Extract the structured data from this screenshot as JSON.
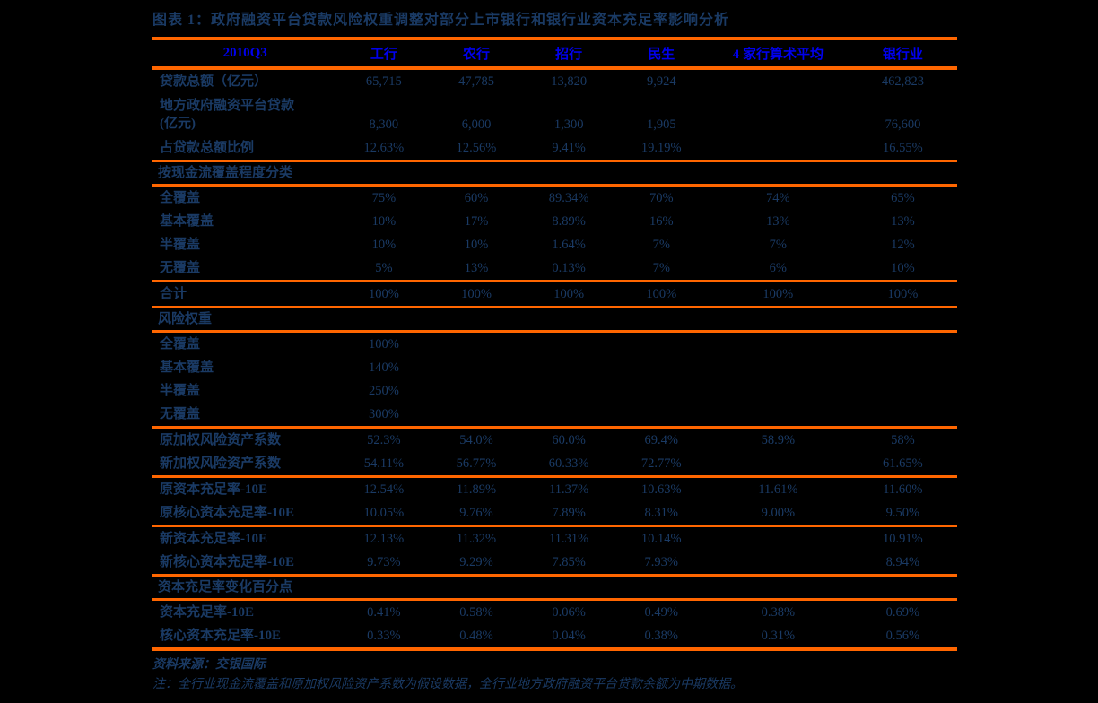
{
  "title": "图表 1：政府融资平台贷款风险权重调整对部分上市银行和银行业资本充足率影响分析",
  "colors": {
    "background": "#000000",
    "rule_orange": "#FF6600",
    "header_blue": "#0000EE",
    "body_navy": "#1A3A64"
  },
  "table": {
    "header": [
      "2010Q3",
      "工行",
      "农行",
      "招行",
      "民生",
      "4 家行算术平均",
      "银行业"
    ],
    "rows": [
      {
        "type": "data",
        "label": "贷款总额（亿元）",
        "values": [
          "65,715",
          "47,785",
          "13,820",
          "9,924",
          "",
          "462,823"
        ]
      },
      {
        "type": "data2",
        "label_line1": "地方政府融资平台贷款",
        "label_line2": "(亿元)",
        "values": [
          "8,300",
          "6,000",
          "1,300",
          "1,905",
          "",
          "76,600"
        ]
      },
      {
        "type": "data",
        "label": "占贷款总额比例",
        "values": [
          "12.63%",
          "12.56%",
          "9.41%",
          "19.19%",
          "",
          "16.55%"
        ]
      },
      {
        "type": "rule"
      },
      {
        "type": "section",
        "label": "按现金流覆盖程度分类"
      },
      {
        "type": "rule"
      },
      {
        "type": "data",
        "label": "全覆盖",
        "values": [
          "75%",
          "60%",
          "89.34%",
          "70%",
          "74%",
          "65%"
        ]
      },
      {
        "type": "data",
        "label": "基本覆盖",
        "values": [
          "10%",
          "17%",
          "8.89%",
          "16%",
          "13%",
          "13%"
        ]
      },
      {
        "type": "data",
        "label": "半覆盖",
        "values": [
          "10%",
          "10%",
          "1.64%",
          "7%",
          "7%",
          "12%"
        ]
      },
      {
        "type": "data",
        "label": "无覆盖",
        "values": [
          "5%",
          "13%",
          "0.13%",
          "7%",
          "6%",
          "10%"
        ]
      },
      {
        "type": "rule"
      },
      {
        "type": "data",
        "label": "合计",
        "values": [
          "100%",
          "100%",
          "100%",
          "100%",
          "100%",
          "100%"
        ]
      },
      {
        "type": "rule"
      },
      {
        "type": "section",
        "label": "风险权重"
      },
      {
        "type": "rule"
      },
      {
        "type": "data",
        "label": "全覆盖",
        "values": [
          "100%",
          "",
          "",
          "",
          "",
          ""
        ]
      },
      {
        "type": "data",
        "label": "基本覆盖",
        "values": [
          "140%",
          "",
          "",
          "",
          "",
          ""
        ]
      },
      {
        "type": "data",
        "label": "半覆盖",
        "values": [
          "250%",
          "",
          "",
          "",
          "",
          ""
        ]
      },
      {
        "type": "data",
        "label": "无覆盖",
        "values": [
          "300%",
          "",
          "",
          "",
          "",
          ""
        ]
      },
      {
        "type": "rule"
      },
      {
        "type": "data",
        "label": "原加权风险资产系数",
        "values": [
          "52.3%",
          "54.0%",
          "60.0%",
          "69.4%",
          "58.9%",
          "58%"
        ]
      },
      {
        "type": "data",
        "label": "新加权风险资产系数",
        "values": [
          "54.11%",
          "56.77%",
          "60.33%",
          "72.77%",
          "",
          "61.65%"
        ]
      },
      {
        "type": "rule"
      },
      {
        "type": "data",
        "label": "原资本充足率-10E",
        "values": [
          "12.54%",
          "11.89%",
          "11.37%",
          "10.63%",
          "11.61%",
          "11.60%"
        ]
      },
      {
        "type": "data",
        "label": "原核心资本充足率-10E",
        "values": [
          "10.05%",
          "9.76%",
          "7.89%",
          "8.31%",
          "9.00%",
          "9.50%"
        ]
      },
      {
        "type": "rule"
      },
      {
        "type": "data",
        "label": "新资本充足率-10E",
        "values": [
          "12.13%",
          "11.32%",
          "11.31%",
          "10.14%",
          "",
          "10.91%"
        ]
      },
      {
        "type": "data",
        "label": "新核心资本充足率-10E",
        "values": [
          "9.73%",
          "9.29%",
          "7.85%",
          "7.93%",
          "",
          "8.94%"
        ]
      },
      {
        "type": "rule"
      },
      {
        "type": "section",
        "label": "资本充足率变化百分点"
      },
      {
        "type": "rule"
      },
      {
        "type": "data",
        "label": "资本充足率-10E",
        "values": [
          "0.41%",
          "0.58%",
          "0.06%",
          "0.49%",
          "0.38%",
          "0.69%"
        ]
      },
      {
        "type": "data",
        "label": "核心资本充足率-10E",
        "values": [
          "0.33%",
          "0.48%",
          "0.04%",
          "0.38%",
          "0.31%",
          "0.56%"
        ]
      },
      {
        "type": "rule_bottom"
      }
    ]
  },
  "footer": {
    "source": "资料来源：交银国际",
    "note": "注：全行业现金流覆盖和原加权风险资产系数为假设数据，全行业地方政府融资平台贷款余额为中期数据。"
  }
}
